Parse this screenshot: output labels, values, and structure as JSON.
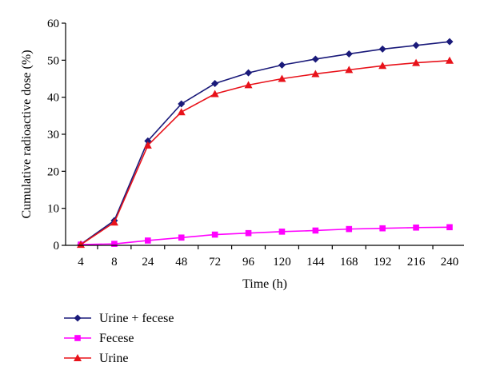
{
  "chart_data": {
    "type": "line",
    "title": "",
    "xlabel": "Time (h)",
    "ylabel": "Cumulative radioactive dose (%)",
    "categories": [
      "4",
      "8",
      "24",
      "48",
      "72",
      "96",
      "120",
      "144",
      "168",
      "192",
      "216",
      "240"
    ],
    "ylim": [
      0,
      60
    ],
    "yticks": [
      "0",
      "10",
      "20",
      "30",
      "40",
      "50",
      "60"
    ],
    "grid": false,
    "legend_position": "bottom-left",
    "series": [
      {
        "name": "Urine + fecese",
        "color": "#1a1a7a",
        "marker": "diamond",
        "values": [
          0.3,
          6.7,
          28.2,
          38.2,
          43.7,
          46.6,
          48.7,
          50.3,
          51.7,
          53.0,
          54.0,
          55.0
        ]
      },
      {
        "name": "Fecese",
        "color": "#ff00ff",
        "marker": "square",
        "values": [
          0.2,
          0.4,
          1.3,
          2.1,
          2.9,
          3.3,
          3.7,
          4.0,
          4.4,
          4.6,
          4.8,
          4.9
        ]
      },
      {
        "name": "Urine",
        "color": "#e8121a",
        "marker": "triangle",
        "values": [
          0.2,
          6.2,
          27.0,
          36.0,
          40.9,
          43.3,
          45.0,
          46.3,
          47.4,
          48.5,
          49.3,
          49.9
        ]
      }
    ]
  }
}
